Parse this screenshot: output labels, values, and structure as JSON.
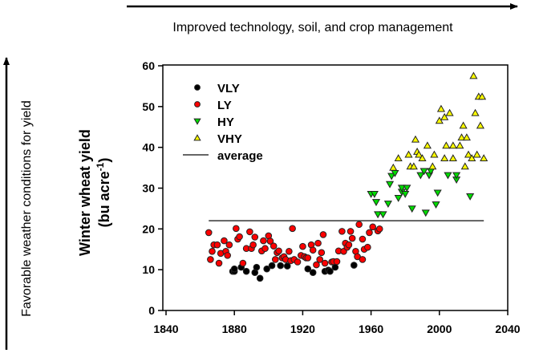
{
  "chart_data": {
    "type": "scatter",
    "title": "",
    "xlabel": "",
    "ylabel": "Winter wheat yield",
    "ylabel_unit": "(bu acre",
    "ylabel_unit_sup": "-1",
    "ylabel_unit_close": ")",
    "xlim": [
      1840,
      2040
    ],
    "ylim": [
      0,
      60
    ],
    "x_ticks": [
      1840,
      1880,
      1920,
      1960,
      2000,
      2040
    ],
    "y_ticks": [
      0,
      10,
      20,
      30,
      40,
      50,
      60
    ],
    "grid": false,
    "legend_position": "top-left",
    "series": [
      {
        "name": "VLY",
        "marker": "circle",
        "color": "#000000",
        "points": [
          [
            1879,
            9.6
          ],
          [
            1880,
            9.6
          ],
          [
            1880,
            10.2
          ],
          [
            1884,
            10.6
          ],
          [
            1887,
            9.6
          ],
          [
            1892,
            9.3
          ],
          [
            1893,
            10.6
          ],
          [
            1895,
            7.9
          ],
          [
            1899,
            10.2
          ],
          [
            1902,
            11.0
          ],
          [
            1907,
            11.0
          ],
          [
            1911,
            10.9
          ],
          [
            1923,
            10.2
          ],
          [
            1926,
            9.3
          ],
          [
            1933,
            9.6
          ],
          [
            1935,
            9.9
          ],
          [
            1936,
            9.6
          ],
          [
            1939,
            10.6
          ],
          [
            1950,
            11.1
          ]
        ]
      },
      {
        "name": "LY",
        "marker": "circle",
        "color": "#ff0000",
        "points": [
          [
            1865,
            19.1
          ],
          [
            1866,
            12.5
          ],
          [
            1867,
            14.5
          ],
          [
            1868,
            16.1
          ],
          [
            1870,
            16.1
          ],
          [
            1871,
            11.6
          ],
          [
            1872,
            14.0
          ],
          [
            1874,
            17.1
          ],
          [
            1875,
            14.5
          ],
          [
            1876,
            13.5
          ],
          [
            1877,
            16.1
          ],
          [
            1881,
            20.1
          ],
          [
            1882,
            17.5
          ],
          [
            1883,
            18.1
          ],
          [
            1885,
            11.6
          ],
          [
            1887,
            15.2
          ],
          [
            1889,
            19.3
          ],
          [
            1890,
            15.2
          ],
          [
            1891,
            16.1
          ],
          [
            1892,
            18.0
          ],
          [
            1896,
            14.6
          ],
          [
            1897,
            17.1
          ],
          [
            1898,
            15.2
          ],
          [
            1900,
            18.3
          ],
          [
            1901,
            17.0
          ],
          [
            1903,
            15.8
          ],
          [
            1904,
            12.5
          ],
          [
            1905,
            14.2
          ],
          [
            1906,
            14.6
          ],
          [
            1908,
            12.9
          ],
          [
            1909,
            13.2
          ],
          [
            1910,
            12.5
          ],
          [
            1912,
            14.5
          ],
          [
            1913,
            12.2
          ],
          [
            1914,
            20.1
          ],
          [
            1915,
            12.5
          ],
          [
            1917,
            11.9
          ],
          [
            1919,
            13.5
          ],
          [
            1920,
            15.7
          ],
          [
            1921,
            13.2
          ],
          [
            1922,
            12.9
          ],
          [
            1923,
            12.9
          ],
          [
            1925,
            16.1
          ],
          [
            1926,
            14.8
          ],
          [
            1928,
            11.2
          ],
          [
            1929,
            16.5
          ],
          [
            1930,
            12.5
          ],
          [
            1931,
            14.2
          ],
          [
            1932,
            18.6
          ],
          [
            1933,
            11.6
          ],
          [
            1937,
            11.9
          ],
          [
            1938,
            12.0
          ],
          [
            1940,
            12.0
          ],
          [
            1941,
            14.6
          ],
          [
            1943,
            19.4
          ],
          [
            1944,
            14.5
          ],
          [
            1945,
            16.5
          ],
          [
            1946,
            15.5
          ],
          [
            1947,
            16.1
          ],
          [
            1948,
            19.4
          ],
          [
            1949,
            17.7
          ],
          [
            1951,
            14.5
          ],
          [
            1952,
            13.2
          ],
          [
            1953,
            21.1
          ],
          [
            1955,
            12.5
          ],
          [
            1955,
            17.5
          ],
          [
            1956,
            15.0
          ],
          [
            1958,
            15.5
          ],
          [
            1959,
            19.1
          ],
          [
            1961,
            20.5
          ],
          [
            1964,
            19.5
          ],
          [
            1965,
            20.0
          ]
        ]
      },
      {
        "name": "HY",
        "marker": "triangle-down",
        "color": "#00dd00",
        "points": [
          [
            1960,
            28.6
          ],
          [
            1962,
            28.6
          ],
          [
            1963,
            26.6
          ],
          [
            1964,
            23.6
          ],
          [
            1967,
            23.6
          ],
          [
            1970,
            26.2
          ],
          [
            1971,
            31.0
          ],
          [
            1972,
            33.0
          ],
          [
            1974,
            33.7
          ],
          [
            1976,
            27.6
          ],
          [
            1978,
            29.1
          ],
          [
            1978,
            30.1
          ],
          [
            1980,
            28.6
          ],
          [
            1981,
            30.1
          ],
          [
            1984,
            25.0
          ],
          [
            1989,
            33.2
          ],
          [
            1991,
            34.2
          ],
          [
            1992,
            24.0
          ],
          [
            1994,
            33.2
          ],
          [
            1995,
            34.2
          ],
          [
            1998,
            26.0
          ],
          [
            1999,
            28.9
          ],
          [
            2005,
            33.2
          ],
          [
            2010,
            32.1
          ],
          [
            2010,
            33.2
          ],
          [
            2018,
            28.0
          ]
        ]
      },
      {
        "name": "VHY",
        "marker": "triangle-up",
        "color": "#ffff00",
        "points": [
          [
            2020,
            57.5
          ],
          [
            2023,
            52.4
          ],
          [
            2025,
            52.4
          ],
          [
            2001,
            49.4
          ],
          [
            2003,
            47.4
          ],
          [
            2000,
            46.5
          ],
          [
            2006,
            48.4
          ],
          [
            2021,
            48.4
          ],
          [
            2014,
            45.3
          ],
          [
            2024,
            45.3
          ],
          [
            1986,
            41.9
          ],
          [
            2013,
            42.4
          ],
          [
            2016,
            42.4
          ],
          [
            1993,
            40.4
          ],
          [
            2004,
            40.4
          ],
          [
            2008,
            40.4
          ],
          [
            2012,
            40.4
          ],
          [
            1982,
            38.2
          ],
          [
            1987,
            38.9
          ],
          [
            1988,
            38.2
          ],
          [
            1990,
            37.3
          ],
          [
            1997,
            38.2
          ],
          [
            2003,
            37.3
          ],
          [
            2008,
            37.3
          ],
          [
            2017,
            38.2
          ],
          [
            2019,
            37.3
          ],
          [
            2022,
            38.2
          ],
          [
            2026,
            37.3
          ],
          [
            1976,
            37.3
          ],
          [
            1973,
            35.0
          ],
          [
            1983,
            35.3
          ],
          [
            1985,
            35.3
          ],
          [
            1996,
            35.3
          ],
          [
            2015,
            35.3
          ]
        ]
      }
    ],
    "average": {
      "name": "average",
      "value": 22,
      "x_range": [
        1865,
        2026
      ]
    }
  },
  "annotations": {
    "top_arrow_label": "Improved technology, soil, and crop management",
    "left_arrow_label": "Favorable weather conditions for yield"
  }
}
